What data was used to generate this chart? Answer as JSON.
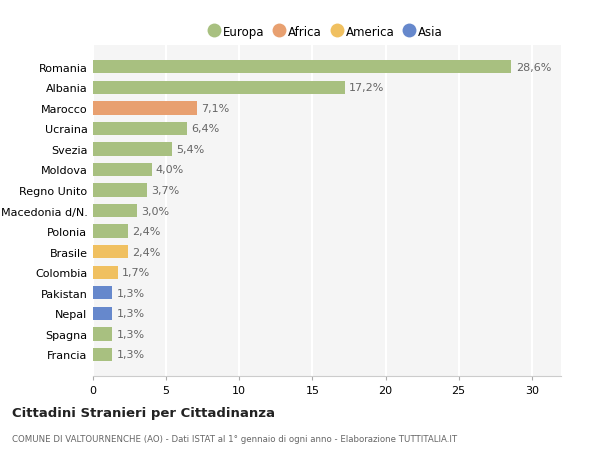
{
  "countries": [
    "Romania",
    "Albania",
    "Marocco",
    "Ucraina",
    "Svezia",
    "Moldova",
    "Regno Unito",
    "Macedonia d/N.",
    "Polonia",
    "Brasile",
    "Colombia",
    "Pakistan",
    "Nepal",
    "Spagna",
    "Francia"
  ],
  "values": [
    28.6,
    17.2,
    7.1,
    6.4,
    5.4,
    4.0,
    3.7,
    3.0,
    2.4,
    2.4,
    1.7,
    1.3,
    1.3,
    1.3,
    1.3
  ],
  "labels": [
    "28,6%",
    "17,2%",
    "7,1%",
    "6,4%",
    "5,4%",
    "4,0%",
    "3,7%",
    "3,0%",
    "2,4%",
    "2,4%",
    "1,7%",
    "1,3%",
    "1,3%",
    "1,3%",
    "1,3%"
  ],
  "continents": [
    "Europa",
    "Europa",
    "Africa",
    "Europa",
    "Europa",
    "Europa",
    "Europa",
    "Europa",
    "Europa",
    "America",
    "America",
    "Asia",
    "Asia",
    "Europa",
    "Europa"
  ],
  "colors": {
    "Europa": "#a8c080",
    "Africa": "#e8a070",
    "America": "#f0c060",
    "Asia": "#6688cc"
  },
  "background_color": "#ffffff",
  "plot_background": "#f5f5f5",
  "grid_color": "#ffffff",
  "title": "Cittadini Stranieri per Cittadinanza",
  "subtitle": "COMUNE DI VALTOURNENCHE (AO) - Dati ISTAT al 1° gennaio di ogni anno - Elaborazione TUTTITALIA.IT",
  "xlim": [
    0,
    32
  ],
  "xticks": [
    0,
    5,
    10,
    15,
    20,
    25,
    30
  ],
  "legend_entries": [
    "Europa",
    "Africa",
    "America",
    "Asia"
  ]
}
